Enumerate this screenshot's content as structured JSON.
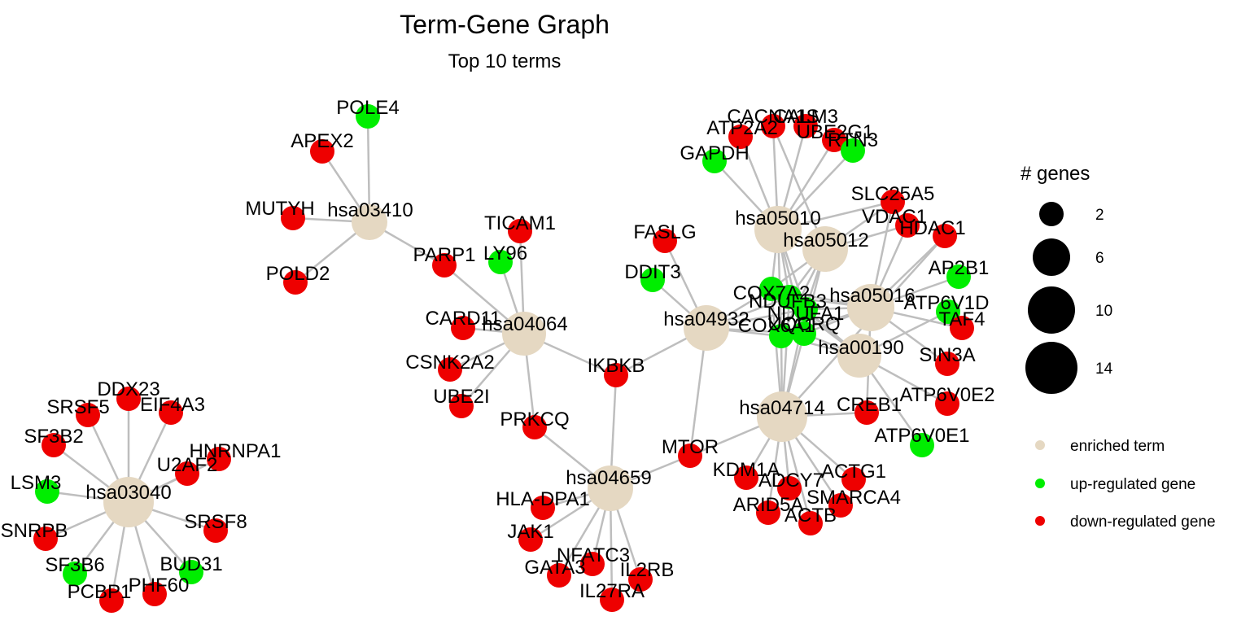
{
  "title": "Term-Gene Graph",
  "subtitle": "Top 10 terms",
  "colors": {
    "enriched_term": "#e5d8c2",
    "up_regulated_gene": "#00ee00",
    "down_regulated_gene": "#ee0000",
    "edge": "#bebebe"
  },
  "legend": {
    "size_title": "# genes",
    "size_entries": [
      {
        "label": "2",
        "genes": 2
      },
      {
        "label": "6",
        "genes": 6
      },
      {
        "label": "10",
        "genes": 10
      },
      {
        "label": "14",
        "genes": 14
      }
    ],
    "color_entries": [
      {
        "label": "enriched term",
        "type": "term"
      },
      {
        "label": "up-regulated gene",
        "type": "up"
      },
      {
        "label": "down-regulated gene",
        "type": "down"
      }
    ]
  },
  "terms": [
    {
      "id": "hsa03410",
      "genes": 5
    },
    {
      "id": "hsa04064",
      "genes": 9
    },
    {
      "id": "hsa03040",
      "genes": 13
    },
    {
      "id": "hsa04659",
      "genes": 11
    },
    {
      "id": "hsa04932",
      "genes": 11
    },
    {
      "id": "hsa05010",
      "genes": 12
    },
    {
      "id": "hsa05012",
      "genes": 11
    },
    {
      "id": "hsa05016",
      "genes": 12
    },
    {
      "id": "hsa00190",
      "genes": 10
    },
    {
      "id": "hsa04714",
      "genes": 13
    }
  ],
  "genes": [
    {
      "name": "POLE4",
      "reg": "up"
    },
    {
      "name": "APEX2",
      "reg": "down"
    },
    {
      "name": "MUTYH",
      "reg": "down"
    },
    {
      "name": "POLD2",
      "reg": "down"
    },
    {
      "name": "PARP1",
      "reg": "down"
    },
    {
      "name": "TICAM1",
      "reg": "down"
    },
    {
      "name": "LY96",
      "reg": "up"
    },
    {
      "name": "CARD11",
      "reg": "down"
    },
    {
      "name": "CSNK2A2",
      "reg": "down"
    },
    {
      "name": "UBE2I",
      "reg": "down"
    },
    {
      "name": "IKBKB",
      "reg": "down"
    },
    {
      "name": "PRKCQ",
      "reg": "down"
    },
    {
      "name": "DDX23",
      "reg": "down"
    },
    {
      "name": "SRSF5",
      "reg": "down"
    },
    {
      "name": "EIF4A3",
      "reg": "down"
    },
    {
      "name": "SF3B2",
      "reg": "down"
    },
    {
      "name": "HNRNPA1",
      "reg": "down"
    },
    {
      "name": "U2AF2",
      "reg": "down"
    },
    {
      "name": "LSM3",
      "reg": "up"
    },
    {
      "name": "SNRPB",
      "reg": "down"
    },
    {
      "name": "SRSF8",
      "reg": "down"
    },
    {
      "name": "SF3B6",
      "reg": "up"
    },
    {
      "name": "BUD31",
      "reg": "up"
    },
    {
      "name": "PCBP1",
      "reg": "down"
    },
    {
      "name": "PHF60",
      "reg": "down"
    },
    {
      "name": "MTOR",
      "reg": "down"
    },
    {
      "name": "HLA-DPA1",
      "reg": "down"
    },
    {
      "name": "JAK1",
      "reg": "down"
    },
    {
      "name": "NFATC3",
      "reg": "down"
    },
    {
      "name": "GATA3",
      "reg": "down"
    },
    {
      "name": "IL2RB",
      "reg": "down"
    },
    {
      "name": "IL27RA",
      "reg": "down"
    },
    {
      "name": "FASLG",
      "reg": "down"
    },
    {
      "name": "DDIT3",
      "reg": "up"
    },
    {
      "name": "CACNA1S",
      "reg": "down"
    },
    {
      "name": "CALM3",
      "reg": "down"
    },
    {
      "name": "ATP2A2",
      "reg": "down"
    },
    {
      "name": "UBE2G1",
      "reg": "down"
    },
    {
      "name": "RTN3",
      "reg": "up"
    },
    {
      "name": "GAPDH",
      "reg": "up"
    },
    {
      "name": "SLC25A5",
      "reg": "down"
    },
    {
      "name": "VDAC1",
      "reg": "down"
    },
    {
      "name": "HDAC1",
      "reg": "down"
    },
    {
      "name": "AP2B1",
      "reg": "up"
    },
    {
      "name": "ATP6V1D",
      "reg": "up"
    },
    {
      "name": "TAF4",
      "reg": "down"
    },
    {
      "name": "SIN3A",
      "reg": "down"
    },
    {
      "name": "ATP6V0E2",
      "reg": "down"
    },
    {
      "name": "ATP6V0E1",
      "reg": "up"
    },
    {
      "name": "CREB1",
      "reg": "down"
    },
    {
      "name": "COX7A2",
      "reg": "up"
    },
    {
      "name": "NDUFB3",
      "reg": "up"
    },
    {
      "name": "NDUFA1",
      "reg": "up"
    },
    {
      "name": "COX6A1",
      "reg": "up"
    },
    {
      "name": "UQCRQ",
      "reg": "up"
    },
    {
      "name": "KDM1A",
      "reg": "down"
    },
    {
      "name": "ADCY7",
      "reg": "down"
    },
    {
      "name": "ACTG1",
      "reg": "down"
    },
    {
      "name": "ARID5A",
      "reg": "down"
    },
    {
      "name": "SMARCA4",
      "reg": "down"
    },
    {
      "name": "ACTB",
      "reg": "down"
    }
  ]
}
